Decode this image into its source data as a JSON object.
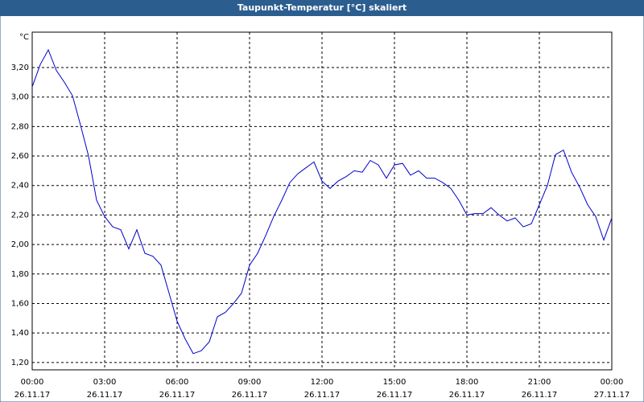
{
  "chart_data": {
    "type": "line",
    "title": "Taupunkt-Temperatur [°C] skaliert",
    "y_unit": "°C",
    "x": [
      "2017-11-26T00:00",
      "2017-11-26T00:20",
      "2017-11-26T00:40",
      "2017-11-26T01:00",
      "2017-11-26T01:20",
      "2017-11-26T01:40",
      "2017-11-26T02:00",
      "2017-11-26T02:20",
      "2017-11-26T02:40",
      "2017-11-26T03:00",
      "2017-11-26T03:20",
      "2017-11-26T03:40",
      "2017-11-26T04:00",
      "2017-11-26T04:20",
      "2017-11-26T04:40",
      "2017-11-26T05:00",
      "2017-11-26T05:20",
      "2017-11-26T05:40",
      "2017-11-26T06:00",
      "2017-11-26T06:20",
      "2017-11-26T06:40",
      "2017-11-26T07:00",
      "2017-11-26T07:20",
      "2017-11-26T07:40",
      "2017-11-26T08:00",
      "2017-11-26T08:20",
      "2017-11-26T08:40",
      "2017-11-26T09:00",
      "2017-11-26T09:20",
      "2017-11-26T09:40",
      "2017-11-26T10:00",
      "2017-11-26T10:20",
      "2017-11-26T10:40",
      "2017-11-26T11:00",
      "2017-11-26T11:20",
      "2017-11-26T11:40",
      "2017-11-26T12:00",
      "2017-11-26T12:20",
      "2017-11-26T12:40",
      "2017-11-26T13:00",
      "2017-11-26T13:20",
      "2017-11-26T13:40",
      "2017-11-26T14:00",
      "2017-11-26T14:20",
      "2017-11-26T14:40",
      "2017-11-26T15:00",
      "2017-11-26T15:20",
      "2017-11-26T15:40",
      "2017-11-26T16:00",
      "2017-11-26T16:20",
      "2017-11-26T16:40",
      "2017-11-26T17:00",
      "2017-11-26T17:20",
      "2017-11-26T17:40",
      "2017-11-26T18:00",
      "2017-11-26T18:20",
      "2017-11-26T18:40",
      "2017-11-26T19:00",
      "2017-11-26T19:20",
      "2017-11-26T19:40",
      "2017-11-26T20:00",
      "2017-11-26T20:20",
      "2017-11-26T20:40",
      "2017-11-26T21:00",
      "2017-11-26T21:20",
      "2017-11-26T21:40",
      "2017-11-26T22:00",
      "2017-11-26T22:20",
      "2017-11-26T22:40",
      "2017-11-26T23:00",
      "2017-11-26T23:20",
      "2017-11-26T23:40",
      "2017-11-27T00:00"
    ],
    "series": [
      {
        "name": "Taupunkt-Temperatur",
        "color": "#0000cc",
        "values": [
          3.07,
          3.22,
          3.32,
          3.18,
          3.1,
          3.01,
          2.81,
          2.6,
          2.3,
          2.19,
          2.12,
          2.1,
          1.97,
          2.1,
          1.94,
          1.92,
          1.86,
          1.67,
          1.48,
          1.36,
          1.26,
          1.28,
          1.34,
          1.51,
          1.54,
          1.6,
          1.67,
          1.86,
          1.94,
          2.06,
          2.19,
          2.3,
          2.42,
          2.48,
          2.52,
          2.56,
          2.43,
          2.38,
          2.43,
          2.46,
          2.5,
          2.49,
          2.57,
          2.54,
          2.45,
          2.54,
          2.55,
          2.47,
          2.5,
          2.45,
          2.45,
          2.42,
          2.38,
          2.3,
          2.2,
          2.21,
          2.21,
          2.25,
          2.2,
          2.16,
          2.18,
          2.12,
          2.14,
          2.27,
          2.4,
          2.61,
          2.64,
          2.49,
          2.39,
          2.27,
          2.19,
          2.03,
          2.18
        ]
      }
    ],
    "xlim": [
      "2017-11-26T00:00",
      "2017-11-27T00:00"
    ],
    "xticks": [
      {
        "value": "2017-11-26T00:00",
        "label": [
          "00:00",
          "26.11.17"
        ]
      },
      {
        "value": "2017-11-26T03:00",
        "label": [
          "03:00",
          "26.11.17"
        ]
      },
      {
        "value": "2017-11-26T06:00",
        "label": [
          "06:00",
          "26.11.17"
        ]
      },
      {
        "value": "2017-11-26T09:00",
        "label": [
          "09:00",
          "26.11.17"
        ]
      },
      {
        "value": "2017-11-26T12:00",
        "label": [
          "12:00",
          "26.11.17"
        ]
      },
      {
        "value": "2017-11-26T15:00",
        "label": [
          "15:00",
          "26.11.17"
        ]
      },
      {
        "value": "2017-11-26T18:00",
        "label": [
          "18:00",
          "26.11.17"
        ]
      },
      {
        "value": "2017-11-26T21:00",
        "label": [
          "21:00",
          "26.11.17"
        ]
      },
      {
        "value": "2017-11-27T00:00",
        "label": [
          "00:00",
          "27.11.17"
        ]
      }
    ],
    "ylim": [
      1.15,
      3.44
    ],
    "yticks": [
      {
        "value": 1.2,
        "label": "1,20"
      },
      {
        "value": 1.4,
        "label": "1,40"
      },
      {
        "value": 1.6,
        "label": "1,60"
      },
      {
        "value": 1.8,
        "label": "1,80"
      },
      {
        "value": 2.0,
        "label": "2,00"
      },
      {
        "value": 2.2,
        "label": "2,20"
      },
      {
        "value": 2.4,
        "label": "2,40"
      },
      {
        "value": 2.6,
        "label": "2,60"
      },
      {
        "value": 2.8,
        "label": "2,80"
      },
      {
        "value": 3.0,
        "label": "3,00"
      },
      {
        "value": 3.2,
        "label": "3,20"
      }
    ],
    "grid": true
  }
}
